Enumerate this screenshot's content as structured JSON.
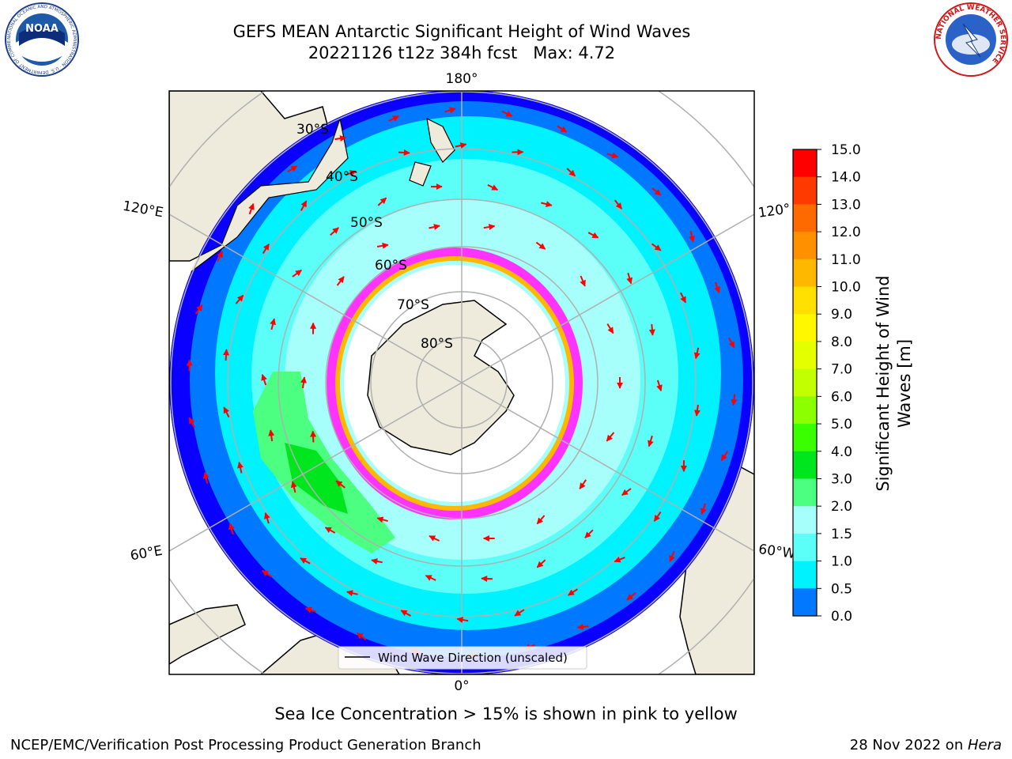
{
  "header": {
    "title_line1": "GEFS MEAN Antarctic Significant Height of Wind Waves",
    "title_line2": "20221126 t12z 384h fcst   Max: 4.72"
  },
  "logos": {
    "noaa_text": "NOAA",
    "noaa_ring": "NATIONAL OCEANIC AND ATMOSPHERIC ADMINISTRATION · U.S. DEPARTMENT OF COMMERCE",
    "nws_ring": "NATIONAL WEATHER SERVICE"
  },
  "map": {
    "lon_labels": {
      "top": "180°",
      "bottom": "0°",
      "left_upper": "120°E",
      "left_lower": "60°E",
      "right_upper": "120°",
      "right_lower": "60°W"
    },
    "lat_labels": [
      "30°S",
      "40°S",
      "50°S",
      "60°S",
      "70°S",
      "80°S"
    ],
    "legend_label": "Wind Wave Direction (unscaled)"
  },
  "colorbar": {
    "label_line1": "Significant Height of Wind",
    "label_line2": "Waves [m]",
    "ticks": [
      "15.0",
      "14.0",
      "13.0",
      "12.0",
      "11.0",
      "10.0",
      "9.0",
      "8.0",
      "7.0",
      "6.0",
      "5.0",
      "4.0",
      "3.0",
      "2.0",
      "1.5",
      "1.0",
      "0.5",
      "0.0"
    ],
    "colors": [
      "#ff0000",
      "#ff3a00",
      "#ff6a00",
      "#ff9000",
      "#ffb800",
      "#ffe000",
      "#fff700",
      "#e4ff00",
      "#c2ff00",
      "#8cff00",
      "#39ff00",
      "#00e61e",
      "#4cff80",
      "#a6fffb",
      "#5cfff8",
      "#00f2ff",
      "#0078ff",
      "#0a00ff"
    ]
  },
  "notes": {
    "sea_ice": "Sea Ice Concentration > 15% is shown in pink to yellow",
    "left": "NCEP/EMC/Verification Post Processing Product Generation Branch",
    "date": "28 Nov 2022 on ",
    "machine": "Hera"
  }
}
